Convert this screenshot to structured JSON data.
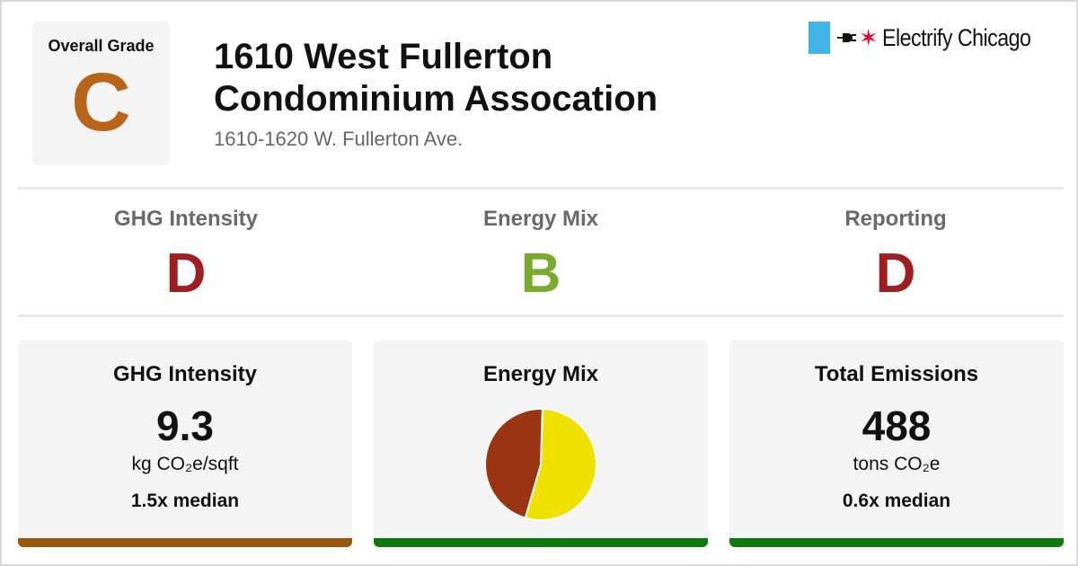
{
  "overall": {
    "label": "Overall Grade",
    "grade": "C",
    "color": "#b8651b"
  },
  "building": {
    "title_line1": "1610 West Fullerton",
    "title_line2": "Condominium Assocation",
    "address": "1610-1620 W. Fullerton Ave."
  },
  "brand": {
    "name": "Electrify Chicago",
    "flag_color": "#41b6e6",
    "star_color": "#e4002b",
    "star_glyph": "✶",
    "plug_icon": "plug-icon"
  },
  "grades": [
    {
      "label": "GHG Intensity",
      "grade": "D",
      "color": "#9e1e22"
    },
    {
      "label": "Energy Mix",
      "grade": "B",
      "color": "#7aab2e"
    },
    {
      "label": "Reporting",
      "grade": "D",
      "color": "#9e1e22"
    }
  ],
  "cards": {
    "ghg": {
      "title": "GHG Intensity",
      "value": "9.3",
      "unit": "kg CO₂e/sqft",
      "median": "1.5x median",
      "bar_color": "#98570f"
    },
    "mix": {
      "title": "Energy Mix",
      "bar_color": "#0f7a0f"
    },
    "emissions": {
      "title": "Total Emissions",
      "value": "488",
      "unit": "tons CO₂e",
      "median": "0.6x median",
      "bar_color": "#0f7a0f"
    }
  },
  "chart_data": {
    "type": "pie",
    "title": "",
    "slices": [
      {
        "value": 54,
        "color": "#f0e000"
      },
      {
        "value": 46,
        "color": "#9a3412"
      }
    ]
  }
}
